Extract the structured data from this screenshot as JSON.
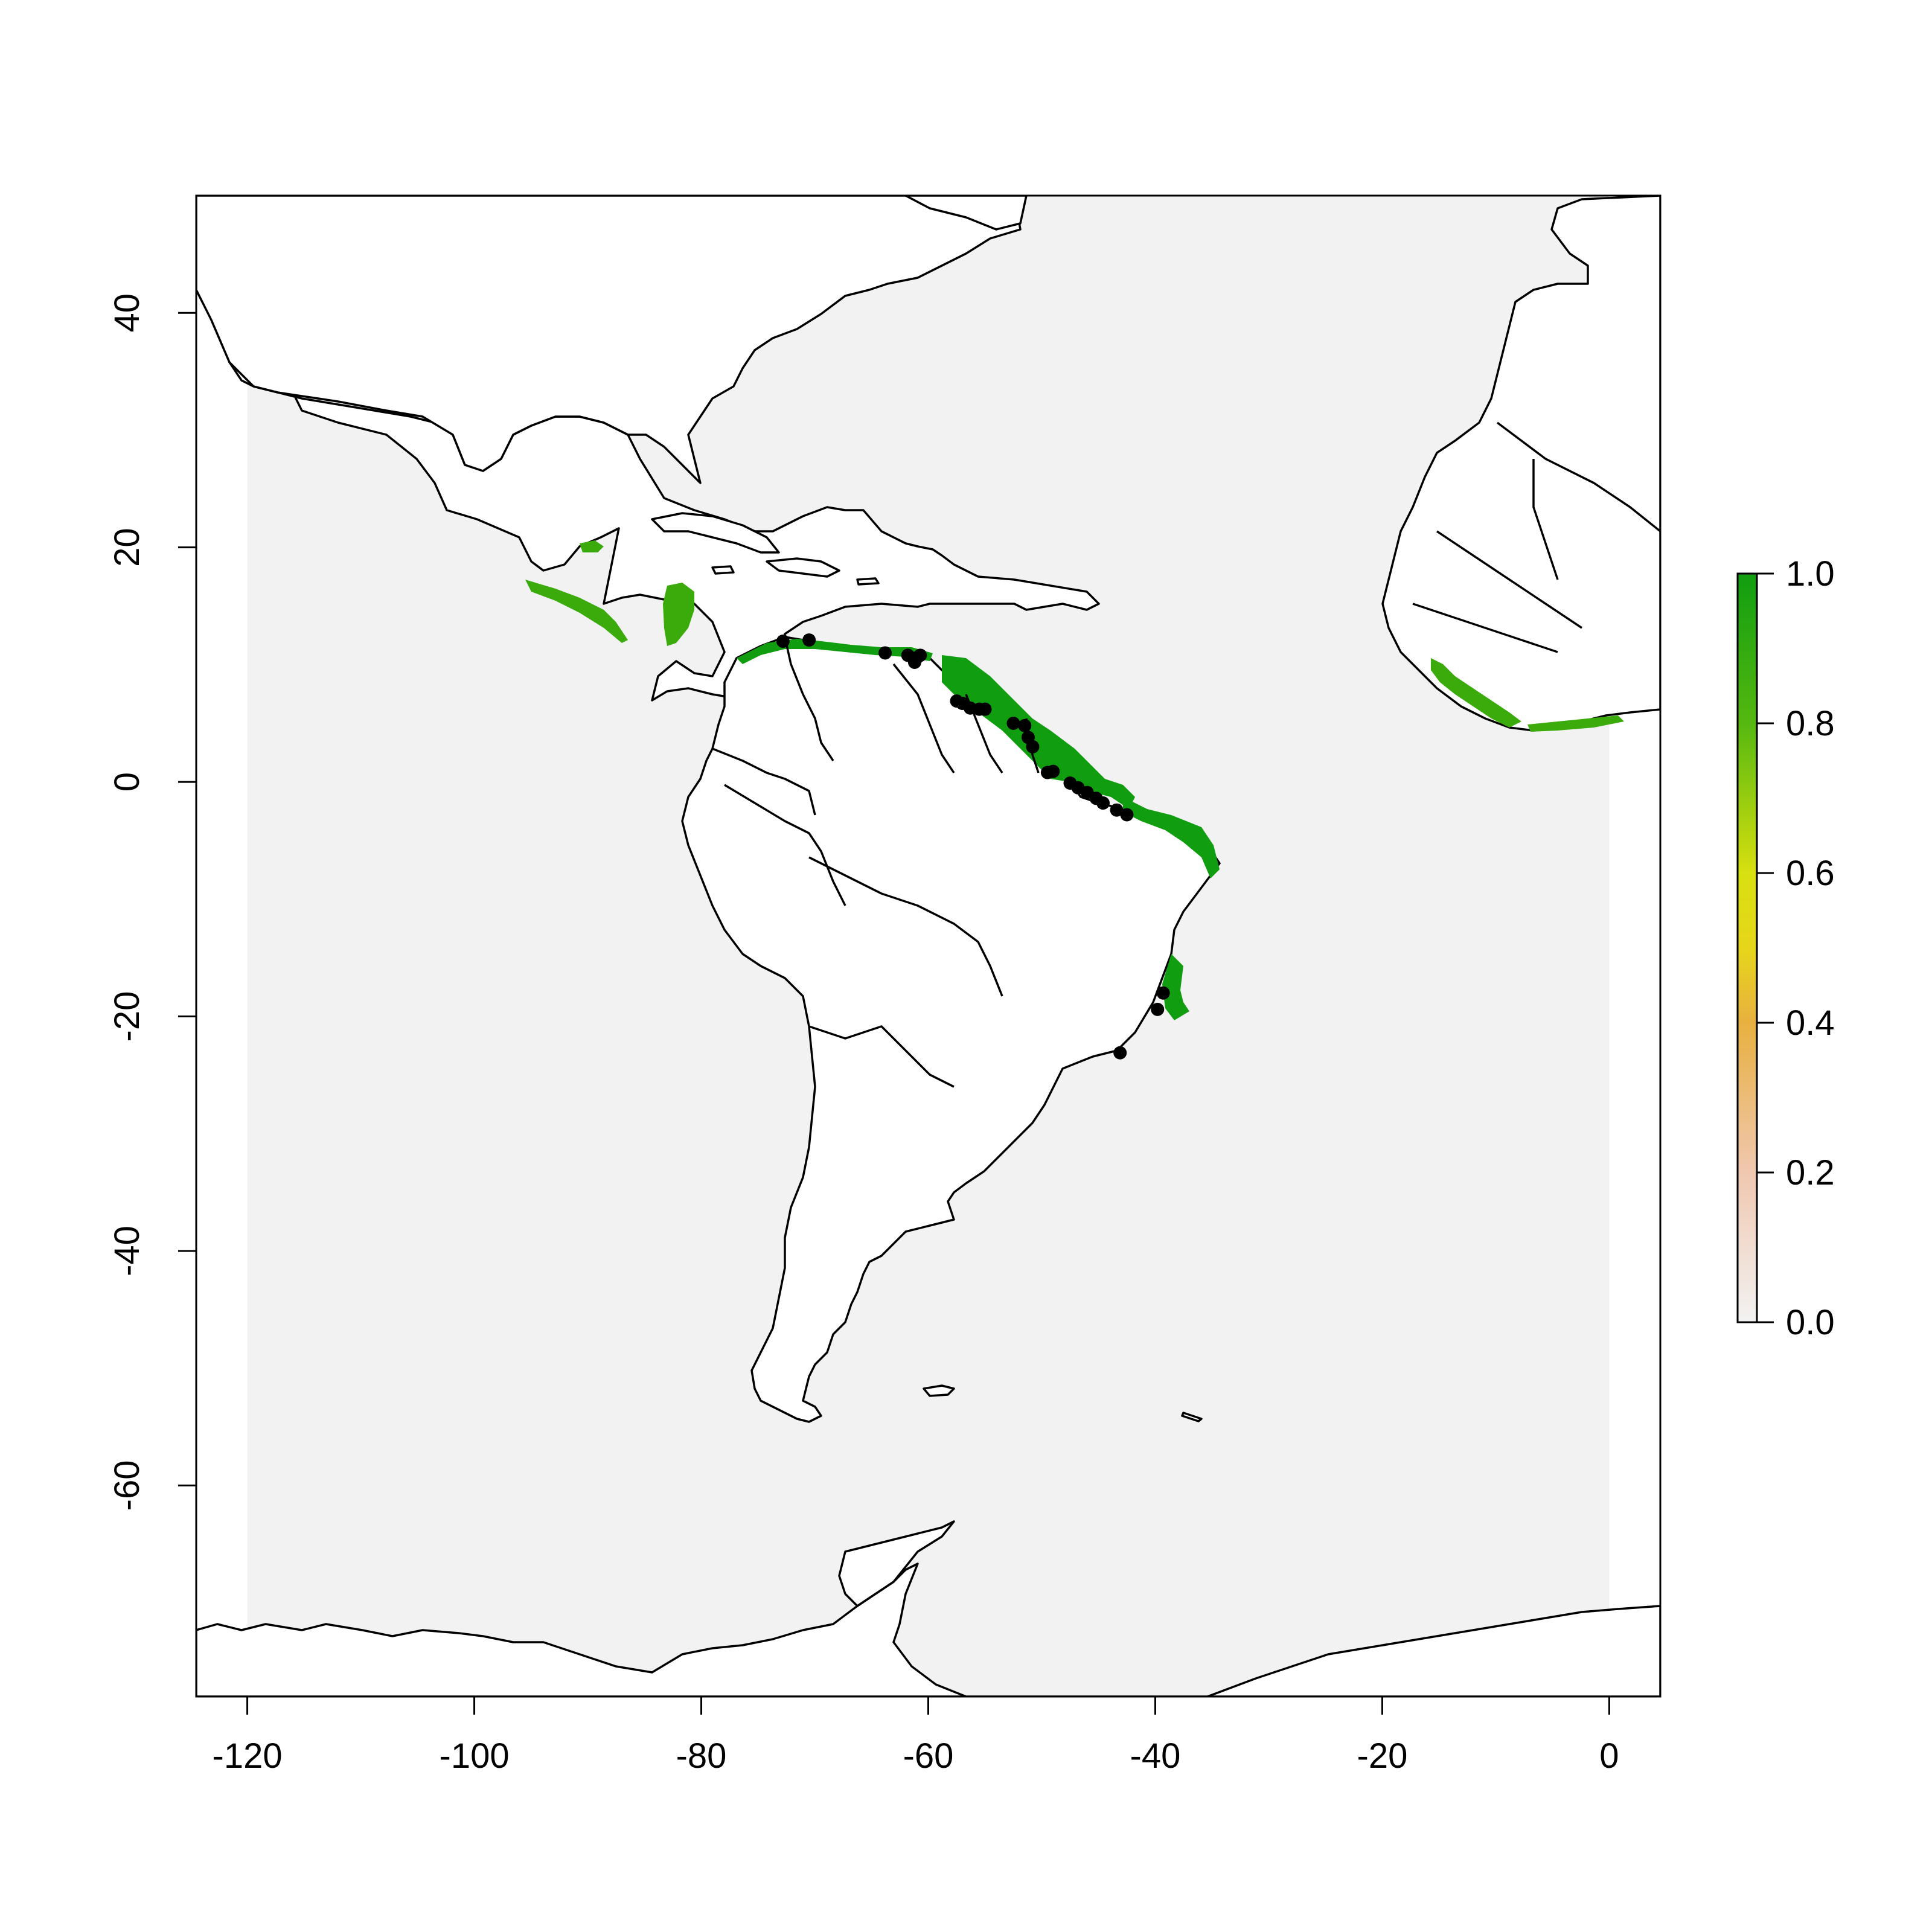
{
  "map": {
    "type": "species-distribution-raster",
    "x_axis": {
      "ticks": [
        "-120",
        "-100",
        "-80",
        "-60",
        "-40",
        "-20",
        "0"
      ],
      "values": [
        -120,
        -100,
        -80,
        -60,
        -40,
        -20,
        0
      ],
      "range": [
        -124.5,
        4.5
      ]
    },
    "y_axis": {
      "ticks": [
        "40",
        "20",
        "0",
        "-20",
        "-40",
        "-60"
      ],
      "values": [
        40,
        20,
        0,
        -20,
        -40,
        -60
      ],
      "range": [
        -78,
        50
      ]
    },
    "raster_extent": {
      "lon": [
        -120,
        0
      ],
      "lat": [
        -78,
        50
      ]
    },
    "background_value": 0.0,
    "colors": {
      "background": "#f2f2f2",
      "high_suitability": "#109d10",
      "mid_suitability": "#3aab0a",
      "land": "#ffffff",
      "outline": "#000000",
      "occurrence": "#000000"
    },
    "occurrence_points": [
      [
        -72.8,
        12.0
      ],
      [
        -70.5,
        12.1
      ],
      [
        -63.8,
        11.0
      ],
      [
        -61.8,
        10.8
      ],
      [
        -61.0,
        10.6
      ],
      [
        -60.7,
        10.8
      ],
      [
        -61.2,
        10.2
      ],
      [
        -57.5,
        6.9
      ],
      [
        -57.0,
        6.7
      ],
      [
        -56.3,
        6.3
      ],
      [
        -55.5,
        6.2
      ],
      [
        -55.0,
        6.2
      ],
      [
        -52.5,
        5.0
      ],
      [
        -51.5,
        4.8
      ],
      [
        -51.2,
        3.8
      ],
      [
        -50.8,
        3.0
      ],
      [
        -49.5,
        0.8
      ],
      [
        -49.0,
        0.9
      ],
      [
        -47.5,
        -0.1
      ],
      [
        -46.8,
        -0.5
      ],
      [
        -46.0,
        -0.9
      ],
      [
        -45.2,
        -1.4
      ],
      [
        -44.6,
        -1.8
      ],
      [
        -43.4,
        -2.4
      ],
      [
        -42.5,
        -2.8
      ],
      [
        -39.8,
        -19.4
      ],
      [
        -39.3,
        -18.0
      ],
      [
        -43.1,
        -23.1
      ]
    ]
  },
  "legend": {
    "labels": [
      "1.0",
      "0.8",
      "0.6",
      "0.4",
      "0.2",
      "0.0"
    ],
    "values": [
      1.0,
      0.8,
      0.6,
      0.4,
      0.2,
      0.0
    ],
    "gradient_stops": [
      {
        "value": 0.0,
        "color": "#f2f2f2"
      },
      {
        "value": 0.2,
        "color": "#f0c8b0"
      },
      {
        "value": 0.4,
        "color": "#e8b040"
      },
      {
        "value": 0.5,
        "color": "#e6d61a"
      },
      {
        "value": 0.6,
        "color": "#d8e010"
      },
      {
        "value": 0.8,
        "color": "#55b810"
      },
      {
        "value": 1.0,
        "color": "#109d10"
      }
    ]
  }
}
